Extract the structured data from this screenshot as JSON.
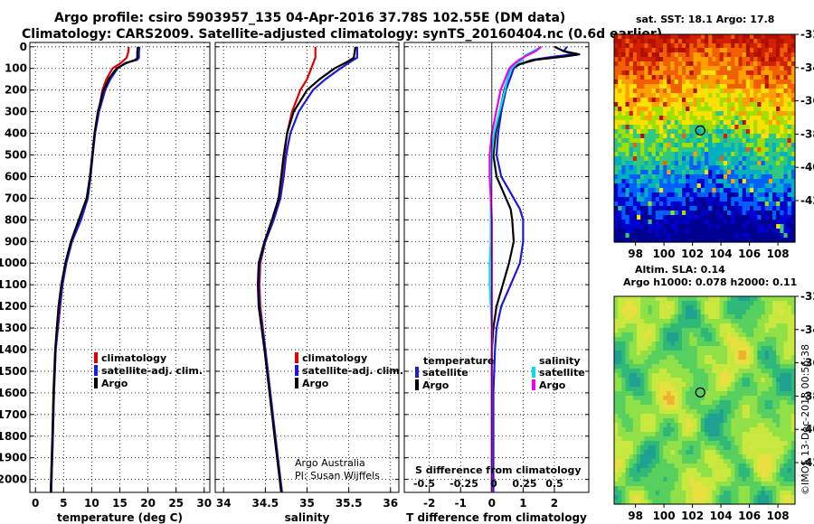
{
  "header": {
    "title_line1": "Argo profile: csiro 5903957_135 04-Apr-2016 37.78S 102.55E (DM data)",
    "title_line2": "Climatology: CARS2009. Satellite-adjusted climatology: synTS_20160404.nc (0.6d earlier)"
  },
  "colors": {
    "climatology": "#e00000",
    "satellite": "#1a1ad8",
    "argo": "#000000",
    "sal_satellite": "#00e0ee",
    "sal_argo": "#ee00ee"
  },
  "chart_data": [
    {
      "type": "line",
      "name": "temperature",
      "xlabel": "temperature (deg C)",
      "xlim": [
        -1,
        31
      ],
      "ylim": [
        2060,
        -20
      ],
      "xticks": [
        0,
        5,
        10,
        15,
        20,
        25,
        30
      ],
      "yticks": [
        0,
        100,
        200,
        300,
        400,
        500,
        600,
        700,
        800,
        900,
        1000,
        1100,
        1200,
        1300,
        1400,
        1500,
        1600,
        1700,
        1800,
        1900,
        2000
      ],
      "legend": [
        "climatology",
        "satellite-adj. clim.",
        "Argo"
      ],
      "series": [
        {
          "name": "climatology",
          "color": "#e00000",
          "depth": [
            0,
            25,
            50,
            75,
            100,
            150,
            200,
            300,
            400,
            500,
            600,
            700,
            800,
            900,
            1000,
            1100,
            1200,
            1400,
            1600,
            1800,
            2060
          ],
          "values": [
            16.6,
            16.5,
            16.2,
            15.2,
            13.7,
            12.6,
            11.9,
            11.2,
            10.6,
            10.1,
            9.7,
            9.2,
            8.0,
            6.4,
            5.4,
            4.8,
            4.4,
            3.6,
            3.3,
            3.1,
            2.8
          ]
        },
        {
          "name": "satellite-adj. clim.",
          "color": "#1a1ad8",
          "depth": [
            0,
            25,
            50,
            60,
            75,
            100,
            150,
            200,
            300,
            400,
            500,
            600,
            700,
            800,
            900,
            1000,
            1100,
            1200,
            1400,
            1600,
            1800,
            2060
          ],
          "values": [
            18.5,
            18.4,
            18.4,
            18.1,
            16.0,
            14.6,
            13.3,
            12.4,
            11.3,
            10.6,
            10.2,
            9.8,
            9.3,
            8.1,
            6.5,
            5.5,
            4.8,
            4.3,
            3.6,
            3.3,
            3.1,
            2.8
          ]
        },
        {
          "name": "Argo",
          "color": "#000000",
          "depth": [
            0,
            25,
            50,
            60,
            75,
            100,
            150,
            200,
            300,
            400,
            500,
            600,
            700,
            800,
            900,
            1000,
            1100,
            1200,
            1400,
            1600,
            1800,
            2060
          ],
          "values": [
            18.2,
            18.1,
            18.1,
            17.8,
            16.2,
            14.4,
            13.0,
            12.1,
            11.1,
            10.5,
            10.1,
            9.7,
            9.1,
            7.7,
            6.3,
            5.3,
            4.6,
            4.1,
            3.5,
            3.2,
            3.0,
            2.7
          ]
        }
      ]
    },
    {
      "type": "line",
      "name": "salinity",
      "xlabel": "salinity",
      "xlim": [
        33.9,
        36.1
      ],
      "ylim": [
        2060,
        -20
      ],
      "xticks": [
        34,
        34.5,
        35,
        35.5,
        36
      ],
      "legend": [
        "climatology",
        "satellite-adj. clim.",
        "Argo"
      ],
      "series": [
        {
          "name": "climatology",
          "color": "#e00000",
          "depth": [
            0,
            50,
            100,
            150,
            200,
            300,
            400,
            500,
            600,
            700,
            800,
            900,
            1000,
            1100,
            1200,
            1400,
            1600,
            1800,
            2060
          ],
          "values": [
            35.1,
            35.1,
            35.05,
            35.0,
            34.92,
            34.82,
            34.76,
            34.73,
            34.71,
            34.68,
            34.6,
            34.5,
            34.44,
            34.43,
            34.44,
            34.5,
            34.56,
            34.62,
            34.7
          ]
        },
        {
          "name": "satellite-adj. clim.",
          "color": "#1a1ad8",
          "depth": [
            0,
            50,
            70,
            100,
            150,
            200,
            300,
            400,
            500,
            600,
            700,
            800,
            900,
            1000,
            1100,
            1200,
            1400,
            1600,
            1800,
            2060
          ],
          "values": [
            35.6,
            35.6,
            35.52,
            35.4,
            35.22,
            35.07,
            34.9,
            34.8,
            34.75,
            34.72,
            34.68,
            34.6,
            34.5,
            34.43,
            34.42,
            34.43,
            34.5,
            34.56,
            34.62,
            34.7
          ]
        },
        {
          "name": "Argo",
          "color": "#000000",
          "depth": [
            0,
            50,
            70,
            100,
            150,
            200,
            300,
            400,
            500,
            600,
            700,
            800,
            900,
            1000,
            1100,
            1200,
            1400,
            1600,
            1800,
            2060
          ],
          "values": [
            35.58,
            35.56,
            35.48,
            35.33,
            35.15,
            35.0,
            34.84,
            34.76,
            34.72,
            34.69,
            34.66,
            34.58,
            34.49,
            34.42,
            34.41,
            34.42,
            34.49,
            34.55,
            34.61,
            34.69
          ]
        }
      ]
    },
    {
      "type": "line",
      "name": "difference",
      "xlabel": "T difference from climatology",
      "xlim": [
        -2.8,
        3.1
      ],
      "ylim": [
        2060,
        -20
      ],
      "xticks": [
        -2,
        -1,
        0,
        1,
        2
      ],
      "top_axis_label": "S difference from climatology",
      "top_ticks": [
        "-0.5",
        "-0.25",
        "0",
        "0.25",
        "0.5"
      ],
      "legend_temperature": {
        "title": "temperature",
        "items": [
          "satellite",
          "Argo"
        ]
      },
      "legend_salinity": {
        "title": "salinity",
        "items": [
          "satellite",
          "Argo"
        ]
      },
      "series": [
        {
          "name": "T satellite",
          "color": "#1a1ad8",
          "depth": [
            0,
            20,
            35,
            45,
            60,
            80,
            100,
            200,
            300,
            400,
            500,
            600,
            700,
            750,
            800,
            900,
            1000,
            1100,
            1200,
            1300,
            1400,
            1600,
            1800,
            2060
          ],
          "values": [
            2.4,
            2.3,
            2.6,
            2.0,
            1.3,
            0.9,
            0.7,
            0.45,
            0.3,
            0.2,
            0.15,
            0.3,
            0.7,
            0.9,
            1.0,
            1.0,
            0.9,
            0.6,
            0.3,
            0.15,
            0.1,
            0.05,
            0.05,
            0.05
          ]
        },
        {
          "name": "T Argo",
          "color": "#000000",
          "depth": [
            0,
            20,
            35,
            45,
            60,
            80,
            100,
            200,
            300,
            400,
            500,
            600,
            700,
            750,
            800,
            900,
            1000,
            1100,
            1200,
            1300,
            1400,
            1600,
            1800,
            2060
          ],
          "values": [
            2.0,
            2.3,
            2.8,
            2.3,
            1.4,
            0.9,
            0.6,
            0.4,
            0.25,
            0.12,
            0.05,
            0.15,
            0.45,
            0.6,
            0.65,
            0.7,
            0.55,
            0.35,
            0.15,
            0.05,
            0.0,
            0.0,
            0.0,
            0.0
          ]
        },
        {
          "name": "S satellite",
          "color": "#00e0ee",
          "depth": [
            0,
            20,
            40,
            60,
            80,
            100,
            150,
            200,
            300,
            400,
            500,
            600,
            700,
            800,
            900,
            1000,
            1100,
            1200,
            1300,
            1600,
            1800,
            2060
          ],
          "values": [
            0.45,
            0.38,
            0.3,
            0.28,
            0.22,
            0.18,
            0.14,
            0.12,
            0.07,
            0.02,
            0.0,
            -0.01,
            -0.01,
            -0.01,
            -0.01,
            -0.02,
            -0.02,
            -0.01,
            0.0,
            0.0,
            0.0,
            0.0
          ]
        },
        {
          "name": "S Argo",
          "color": "#ee00ee",
          "depth": [
            0,
            20,
            40,
            60,
            80,
            100,
            150,
            200,
            300,
            400,
            500,
            600,
            700,
            800,
            900,
            1000,
            1100,
            1200,
            1300,
            1600,
            1800,
            2060
          ],
          "values": [
            0.45,
            0.4,
            0.32,
            0.25,
            0.2,
            0.16,
            0.12,
            0.08,
            0.04,
            0.0,
            -0.02,
            -0.02,
            -0.01,
            0.0,
            0.0,
            0.0,
            0.0,
            0.0,
            0.0,
            0.0,
            0.0,
            0.0
          ]
        }
      ]
    },
    {
      "type": "heatmap",
      "name": "sst_map",
      "title": "sat. SST: 18.1 Argo: 17.8",
      "xticks": [
        98,
        100,
        102,
        104,
        106,
        108
      ],
      "yticks": [
        -32,
        -34,
        -36,
        -38,
        -40,
        -42
      ],
      "xlim": [
        96.5,
        109.2
      ],
      "ylim": [
        -44.5,
        -32
      ],
      "marker": {
        "lon": 102.55,
        "lat": -37.78
      }
    },
    {
      "type": "heatmap",
      "name": "sla_map",
      "title_line1": "Altim. SLA: 0.14",
      "title_line2": "Argo h1000: 0.078 h2000: 0.11",
      "xticks": [
        98,
        100,
        102,
        104,
        106,
        108
      ],
      "yticks": [
        -32,
        -34,
        -36,
        -38,
        -40,
        -42
      ],
      "xlim": [
        96.5,
        109.2
      ],
      "ylim": [
        -44.5,
        -32
      ],
      "marker": {
        "lon": 102.55,
        "lat": -37.78
      }
    }
  ],
  "credits": {
    "line1": "Argo Australia",
    "line2": "PI: Susan Wijffels"
  },
  "watermark": "©IMOS 13-Dec-2018 00:56:38"
}
